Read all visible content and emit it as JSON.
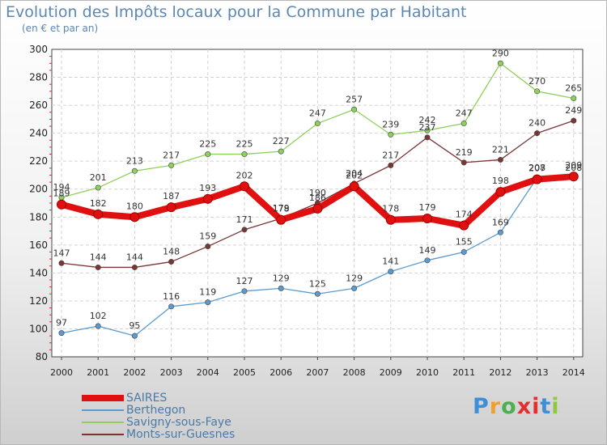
{
  "header": {
    "title": "Evolution des Impôts locaux pour la Commune par Habitant",
    "subtitle": "(en € et par an)"
  },
  "brand": {
    "letters": [
      "P",
      "r",
      "o",
      "x",
      "i",
      "t",
      "i"
    ],
    "colors": [
      "#3f8fd6",
      "#f0a030",
      "#4caf50",
      "#e23030",
      "#e23030",
      "#3f8fd6",
      "#8fc840"
    ]
  },
  "chart_data": {
    "type": "line",
    "x": [
      "2000",
      "2001",
      "2002",
      "2003",
      "2004",
      "2005",
      "2006",
      "2007",
      "2008",
      "2009",
      "2010",
      "2011",
      "2012",
      "2013",
      "2014"
    ],
    "ylim": [
      80,
      300
    ],
    "yticks": [
      80,
      100,
      120,
      140,
      160,
      180,
      200,
      220,
      240,
      260,
      280,
      300
    ],
    "grid": true,
    "legend_position": "bottom-left",
    "series": [
      {
        "name": "SAIRES",
        "color": "#e01010",
        "values": [
          189,
          182,
          180,
          187,
          193,
          202,
          178,
          186,
          202,
          178,
          179,
          174,
          198,
          207,
          209
        ]
      },
      {
        "name": "Berthegon",
        "color": "#5b9bd0",
        "values": [
          97,
          102,
          95,
          116,
          119,
          127,
          129,
          125,
          129,
          141,
          149,
          155,
          169,
          208,
          208
        ]
      },
      {
        "name": "Savigny-sous-Faye",
        "color": "#8fd05a",
        "values": [
          194,
          201,
          213,
          217,
          225,
          225,
          227,
          247,
          257,
          239,
          242,
          247,
          290,
          270,
          265
        ]
      },
      {
        "name": "Monts-sur-Guesnes",
        "color": "#7a3535",
        "values": [
          147,
          144,
          144,
          148,
          159,
          171,
          179,
          190,
          204,
          217,
          237,
          219,
          221,
          240,
          249
        ]
      }
    ]
  }
}
